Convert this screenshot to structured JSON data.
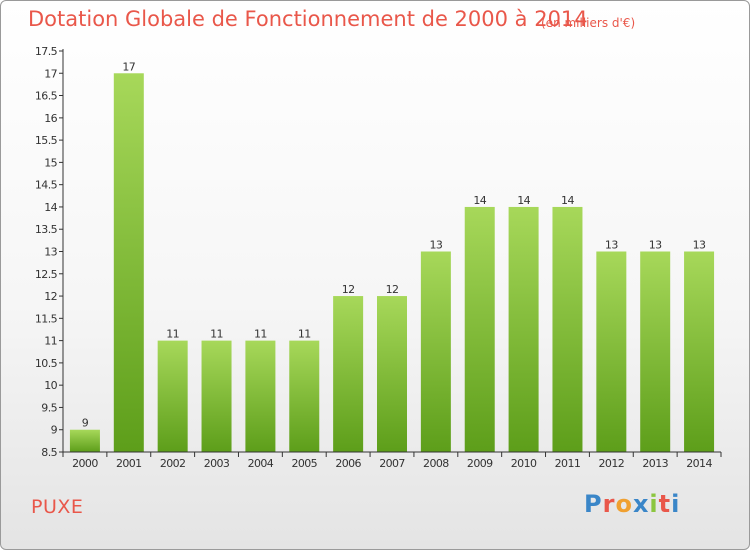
{
  "header": {
    "title": "Dotation Globale de Fonctionnement de 2000 à 2014",
    "units": "(en milliers d'€)"
  },
  "footer": {
    "commune": "PUXE",
    "logo_text": "Proxiti",
    "logo_letters": [
      {
        "ch": "P",
        "color": "#3a86c8"
      },
      {
        "ch": "r",
        "color": "#e9574a"
      },
      {
        "ch": "o",
        "color": "#f0a030"
      },
      {
        "ch": "x",
        "color": "#3a86c8"
      },
      {
        "ch": "i",
        "color": "#8cc63f"
      },
      {
        "ch": "t",
        "color": "#e9574a"
      },
      {
        "ch": "i",
        "color": "#3a86c8"
      }
    ]
  },
  "colors": {
    "bar_top": "#a7d85a",
    "bar_bottom": "#5d9e1a",
    "title": "#e9574a",
    "axis": "#333333"
  },
  "chart_data": {
    "type": "bar",
    "title": "Dotation Globale de Fonctionnement de 2000 à 2014",
    "ylabel": "(en milliers d'€)",
    "categories": [
      "2000",
      "2001",
      "2002",
      "2003",
      "2004",
      "2005",
      "2006",
      "2007",
      "2008",
      "2009",
      "2010",
      "2011",
      "2012",
      "2013",
      "2014"
    ],
    "values": [
      9,
      17,
      11,
      11,
      11,
      11,
      12,
      12,
      13,
      14,
      14,
      14,
      13,
      13,
      13
    ],
    "data_labels": [
      "9",
      "17",
      "11",
      "11",
      "11",
      "11",
      "12",
      "12",
      "13",
      "14",
      "14",
      "14",
      "13",
      "13",
      "13"
    ],
    "ylim": [
      8.5,
      17.5
    ],
    "yticks": [
      8.5,
      9,
      9.5,
      10,
      10.5,
      11,
      11.5,
      12,
      12.5,
      13,
      13.5,
      14,
      14.5,
      15,
      15.5,
      16,
      16.5,
      17,
      17.5
    ],
    "ytick_labels": [
      "8.5",
      "9",
      "9.5",
      "10",
      "10.5",
      "11",
      "11.5",
      "12",
      "12.5",
      "13",
      "13.5",
      "14",
      "14.5",
      "15",
      "15.5",
      "16",
      "16.5",
      "17",
      "17.5"
    ],
    "grid": false,
    "legend": "none"
  }
}
